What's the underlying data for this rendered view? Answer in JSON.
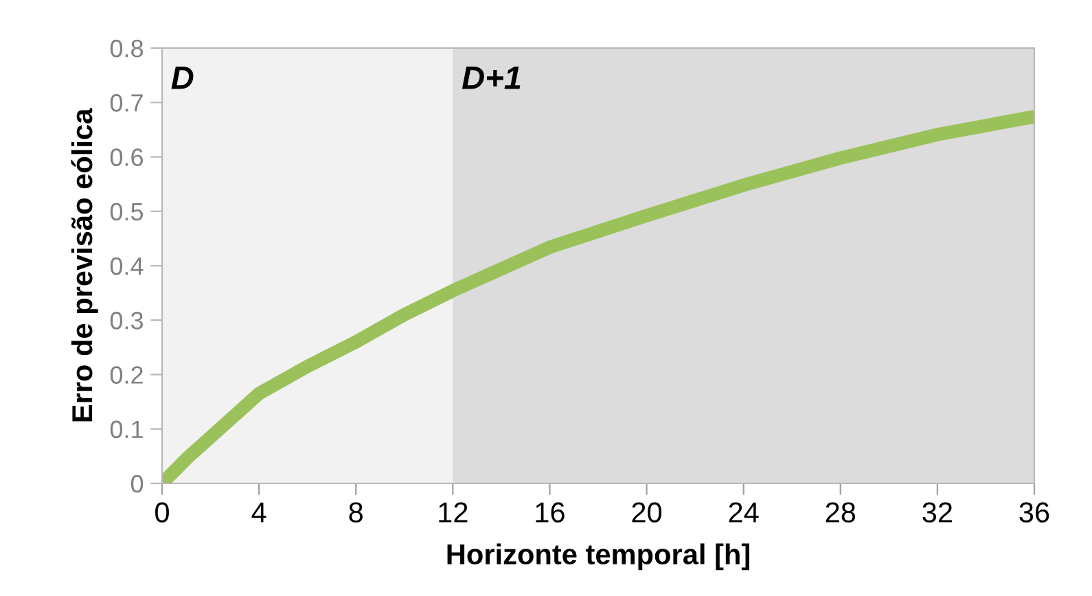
{
  "chart_data": {
    "type": "line",
    "xlabel": "Horizonte temporal [h]",
    "ylabel": "Erro de previsão eólica",
    "x": [
      0,
      1,
      2,
      4,
      6,
      8,
      10,
      12,
      16,
      20,
      24,
      28,
      32,
      36
    ],
    "series": [
      {
        "color": "#9bc25a",
        "values": [
          0,
          0.045,
          0.085,
          0.165,
          0.215,
          0.26,
          0.31,
          0.354,
          0.434,
          0.492,
          0.548,
          0.598,
          0.641,
          0.674
        ]
      }
    ],
    "xlim": [
      0,
      36
    ],
    "xticks": [
      0,
      4,
      8,
      12,
      16,
      20,
      24,
      28,
      32,
      36
    ],
    "ylim": [
      0,
      0.8
    ],
    "yticks": [
      0,
      0.1,
      0.2,
      0.3,
      0.4,
      0.5,
      0.6,
      0.7,
      0.8
    ],
    "bands": [
      {
        "axis": "x",
        "from": 0,
        "to": 12,
        "label": "D",
        "color": "#f2f2f2"
      },
      {
        "axis": "x",
        "from": 12,
        "to": 36,
        "label": "D+1",
        "color": "#dcdcdc"
      }
    ],
    "grid": false,
    "legend": false,
    "marker": "none",
    "line_style": "solid"
  }
}
